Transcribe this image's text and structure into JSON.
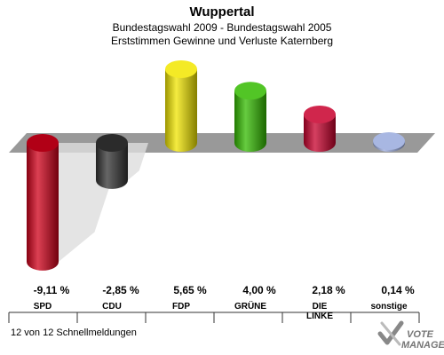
{
  "header": {
    "title": "Wuppertal",
    "subtitle1": "Bundestagswahl 2009 - Bundestagswahl 2005",
    "subtitle2": "Erststimmen Gewinne und Verluste Katernberg"
  },
  "footer": {
    "text": "12 von 12 Schnellmeldungen"
  },
  "logo": {
    "line1": "VOTE",
    "line2": "MANAGER"
  },
  "chart_data": {
    "type": "bar",
    "title": "Wuppertal",
    "subtitle": "Bundestagswahl 2009 - Bundestagswahl 2005 / Erststimmen Gewinne und Verluste Katernberg",
    "categories": [
      "SPD",
      "CDU",
      "FDP",
      "GRÜNE",
      "DIE LINKE",
      "sonstige"
    ],
    "category_labels": [
      [
        "SPD"
      ],
      [
        "CDU"
      ],
      [
        "FDP"
      ],
      [
        "GRÜNE"
      ],
      [
        "DIE",
        "LINKE"
      ],
      [
        "sonstige"
      ]
    ],
    "values": [
      -9.11,
      -2.85,
      5.65,
      4.0,
      2.18,
      0.14
    ],
    "value_labels": [
      "-9,11 %",
      "-2,85 %",
      "5,65 %",
      "4,00 %",
      "2,18 %",
      "0,14 %"
    ],
    "colors": [
      "#d0001a",
      "#333333",
      "#f2e600",
      "#33bb00",
      "#c8002c",
      "#99aadd"
    ],
    "unit": "%",
    "grid": false,
    "legend": "none"
  }
}
